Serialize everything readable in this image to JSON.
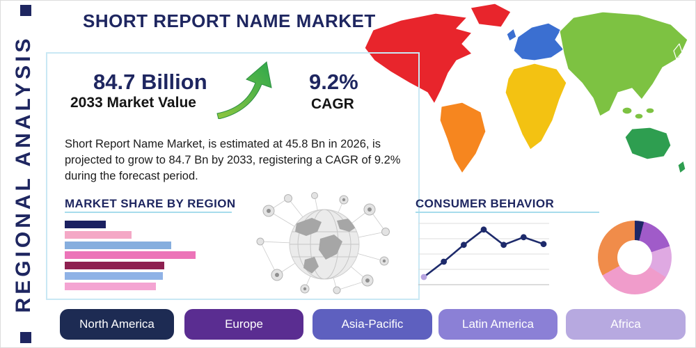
{
  "page": {
    "title": "SHORT REPORT NAME MARKET",
    "side_label": "REGIONAL ANALYSIS"
  },
  "theme": {
    "navy": "#1e2660",
    "accent_line": "#a6dcec"
  },
  "stats": {
    "market_value": "84.7 Billion",
    "market_value_label": "2033 Market Value",
    "cagr_value": "9.2%",
    "cagr_label": "CAGR",
    "description": "Short Report Name Market, is estimated at 45.8 Bn in 2026, is projected to grow to 84.7 Bn by 2033, registering a CAGR of 9.2% during the forecast period."
  },
  "regions": [
    {
      "label": "North America",
      "color": "#1d2b53"
    },
    {
      "label": "Europe",
      "color": "#5a2d91"
    },
    {
      "label": "Asia-Pacific",
      "color": "#5e60bf"
    },
    {
      "label": "Latin America",
      "color": "#8b80d6"
    },
    {
      "label": "Africa",
      "color": "#b7a9e0"
    }
  ],
  "chart_data": [
    {
      "type": "bar",
      "title": "MARKET SHARE BY REGION",
      "orientation": "horizontal",
      "values": [
        30,
        49,
        78,
        96,
        73,
        72,
        67
      ],
      "colors": [
        "#1b2161",
        "#f4a8c6",
        "#86aede",
        "#ec74b8",
        "#8e2050",
        "#8fb2e6",
        "#f4a4d2"
      ],
      "xlim": [
        0,
        100
      ],
      "grid": false,
      "note": "bar lengths estimated as percent of longest axis, no tick labels shown"
    },
    {
      "type": "line",
      "title": "CONSUMER BEHAVIOR",
      "x": [
        1,
        2,
        3,
        4,
        5,
        6,
        7
      ],
      "values": [
        1.0,
        3.0,
        5.2,
        7.2,
        5.2,
        6.2,
        5.3
      ],
      "ylim": [
        0,
        8
      ],
      "grid": true,
      "line_color": "#1d2a6b",
      "marker_colors": {
        "first": "#b7a4e0",
        "rest": "#1d2a6b"
      },
      "note": "values estimated from gridlines, no tick labels shown"
    },
    {
      "type": "pie",
      "title": "Regional share donut",
      "donut": true,
      "slices": [
        {
          "value": 4,
          "color": "#1e2766"
        },
        {
          "value": 16,
          "color": "#a05bc9"
        },
        {
          "value": 14,
          "color": "#dfa9e2"
        },
        {
          "value": 33,
          "color": "#f09ccb"
        },
        {
          "value": 33,
          "color": "#f08c4a"
        }
      ],
      "note": "slice percentages estimated, no labels shown"
    }
  ],
  "map": {
    "north_america": "#e8252c",
    "greenland": "#e8252c",
    "south_america": "#f6861f",
    "europe": "#3b6fd1",
    "uk": "#3b6fd1",
    "africa": "#f3c212",
    "asia": "#7dc242",
    "japan": "#7dc242",
    "se_asia_islands": "#7dc242",
    "australia": "#2e9e50",
    "new_zealand": "#2e9e50"
  }
}
